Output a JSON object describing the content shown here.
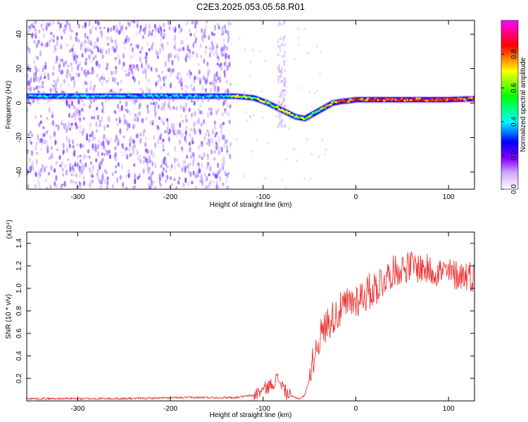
{
  "title": "C2E3.2025.053.05.58.R01",
  "chart_data": [
    {
      "type": "heatmap",
      "xlabel": "Height of straight line (km)",
      "ylabel": "Frequency (Hz)",
      "xlim": [
        -355,
        128
      ],
      "ylim": [
        -50,
        48
      ],
      "xticks": [
        -300,
        -200,
        -100,
        0,
        100
      ],
      "yticks": [
        -40,
        -20,
        0,
        20,
        40
      ],
      "colorbar": {
        "label": "Normalized spectral amplitude",
        "range": [
          0,
          1
        ],
        "ticks": [
          0.0,
          0.2,
          0.4,
          0.6,
          0.8
        ],
        "tick_labels": [
          "0.0",
          "0.2",
          "0.4",
          "0.6",
          "0.8"
        ],
        "colormap": [
          "#ffffff",
          "#8800ff",
          "#0000ff",
          "#00ffff",
          "#00ff00",
          "#ffff00",
          "#ff0000",
          "#ff00ff"
        ]
      },
      "series": [
        {
          "x": [
            -355,
            -300,
            -250,
            -200,
            -150,
            -130,
            -110,
            -95,
            -80,
            -65,
            -55,
            -45,
            -35,
            -25,
            -15,
            -5,
            0,
            20,
            50,
            80,
            100,
            128
          ],
          "values": [
            4,
            4,
            4,
            4,
            4,
            4,
            3,
            0,
            -4,
            -8,
            -9,
            -6,
            -3,
            0,
            1,
            1.5,
            2,
            2,
            2,
            2,
            2,
            2.5
          ]
        }
      ],
      "noise_region_x": [
        -355,
        -135
      ],
      "secondary_band_x": -80
    },
    {
      "type": "line",
      "xlabel": "Height of straight line (km)",
      "ylabel": "SNR (10 * v/v)",
      "yscale_label": "(x10⁴)",
      "xlim": [
        -355,
        128
      ],
      "ylim": [
        0,
        1.5
      ],
      "xticks": [
        -300,
        -200,
        -100,
        0,
        100
      ],
      "yticks": [
        0.2,
        0.4,
        0.6,
        0.8,
        1.0,
        1.2,
        1.4
      ],
      "color": "#ee3333",
      "series": [
        {
          "x": [
            -355,
            -250,
            -180,
            -130,
            -110,
            -100,
            -90,
            -85,
            -80,
            -75,
            -70,
            -60,
            -55,
            -50,
            -45,
            -40,
            -30,
            -20,
            -10,
            0,
            10,
            20,
            30,
            40,
            50,
            60,
            70,
            80,
            90,
            100,
            110,
            120,
            128
          ],
          "values": [
            0.02,
            0.02,
            0.03,
            0.03,
            0.05,
            0.1,
            0.15,
            0.2,
            0.15,
            0.07,
            0.04,
            0.02,
            0.05,
            0.2,
            0.4,
            0.55,
            0.7,
            0.78,
            0.85,
            0.9,
            0.95,
            1.0,
            1.08,
            1.15,
            1.18,
            1.2,
            1.18,
            1.16,
            1.15,
            1.13,
            1.12,
            1.12,
            1.1
          ]
        }
      ]
    }
  ]
}
